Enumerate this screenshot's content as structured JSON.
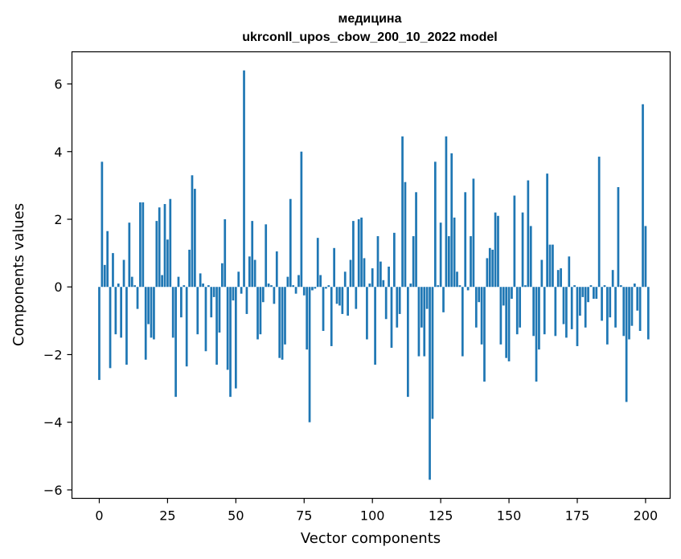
{
  "chart_data": {
    "type": "bar",
    "title": "медицина",
    "subtitle": "ukrconll_upos_cbow_200_10_2022 model",
    "xlabel": "Vector components",
    "ylabel": "Components values",
    "xlim": [
      -10,
      209
    ],
    "ylim": [
      -6.25,
      6.95
    ],
    "xticks": [
      0,
      25,
      50,
      75,
      100,
      125,
      150,
      175,
      200
    ],
    "yticks": [
      -6,
      -4,
      -2,
      0,
      2,
      4,
      6
    ],
    "ytick_labels": [
      "−6",
      "−4",
      "−2",
      "0",
      "2",
      "4",
      "6"
    ],
    "bar_color": "#1f77b4",
    "values": [
      -2.75,
      3.7,
      0.65,
      1.65,
      -2.4,
      1.0,
      -1.4,
      0.1,
      -1.5,
      0.8,
      -2.3,
      1.9,
      0.3,
      0.05,
      -0.65,
      2.5,
      2.5,
      -2.15,
      -1.1,
      -1.5,
      -1.55,
      1.95,
      2.35,
      0.35,
      2.45,
      1.4,
      2.6,
      -1.5,
      -3.25,
      0.3,
      -0.9,
      0.05,
      -2.35,
      1.1,
      3.3,
      2.9,
      -1.4,
      0.4,
      0.1,
      -1.9,
      0.05,
      -0.9,
      -0.3,
      -2.3,
      -1.35,
      0.7,
      2.0,
      -2.45,
      -3.25,
      -0.4,
      -3.0,
      0.45,
      -0.2,
      6.4,
      -0.8,
      0.9,
      1.95,
      0.8,
      -1.55,
      -1.4,
      -0.45,
      1.85,
      0.1,
      0.05,
      -0.5,
      1.05,
      -2.1,
      -2.15,
      -1.7,
      0.3,
      2.6,
      0.05,
      -0.2,
      0.35,
      4.0,
      -0.25,
      -1.85,
      -4.0,
      -0.1,
      -0.05,
      1.45,
      0.35,
      -1.3,
      -0.05,
      0.05,
      -1.75,
      1.15,
      -0.5,
      -0.55,
      -0.8,
      0.45,
      -0.85,
      0.8,
      1.95,
      -0.65,
      2.0,
      2.05,
      0.85,
      -1.55,
      0.1,
      0.55,
      -2.3,
      1.5,
      0.75,
      0.2,
      -0.95,
      0.6,
      -1.8,
      1.6,
      -1.2,
      -0.8,
      4.45,
      3.1,
      -3.25,
      0.1,
      1.5,
      2.8,
      -2.05,
      -1.2,
      -2.05,
      -0.65,
      -5.7,
      -3.9,
      3.7,
      0.05,
      1.9,
      -0.75,
      4.45,
      1.5,
      3.95,
      2.05,
      0.45,
      0.05,
      -2.05,
      2.8,
      -0.1,
      1.5,
      3.2,
      -1.2,
      -0.45,
      -1.7,
      -2.8,
      0.85,
      1.15,
      1.1,
      2.2,
      2.1,
      -1.7,
      -0.55,
      -2.1,
      -2.2,
      -0.35,
      2.7,
      -1.4,
      -1.2,
      2.2,
      0.05,
      3.15,
      1.8,
      -1.45,
      -2.8,
      -1.85,
      0.8,
      -1.4,
      3.35,
      1.25,
      1.25,
      -1.45,
      0.5,
      0.55,
      -1.1,
      -1.5,
      0.9,
      -1.25,
      0.05,
      -1.75,
      -0.85,
      -0.3,
      -1.2,
      -0.45,
      0.05,
      -0.35,
      -0.35,
      3.85,
      -1.0,
      0.05,
      -1.7,
      -0.9,
      0.5,
      -1.2,
      2.95,
      0.05,
      -1.45,
      -3.4,
      -1.55,
      -1.15,
      0.1,
      -0.7,
      -1.3,
      5.4,
      1.8,
      -1.55
    ]
  }
}
